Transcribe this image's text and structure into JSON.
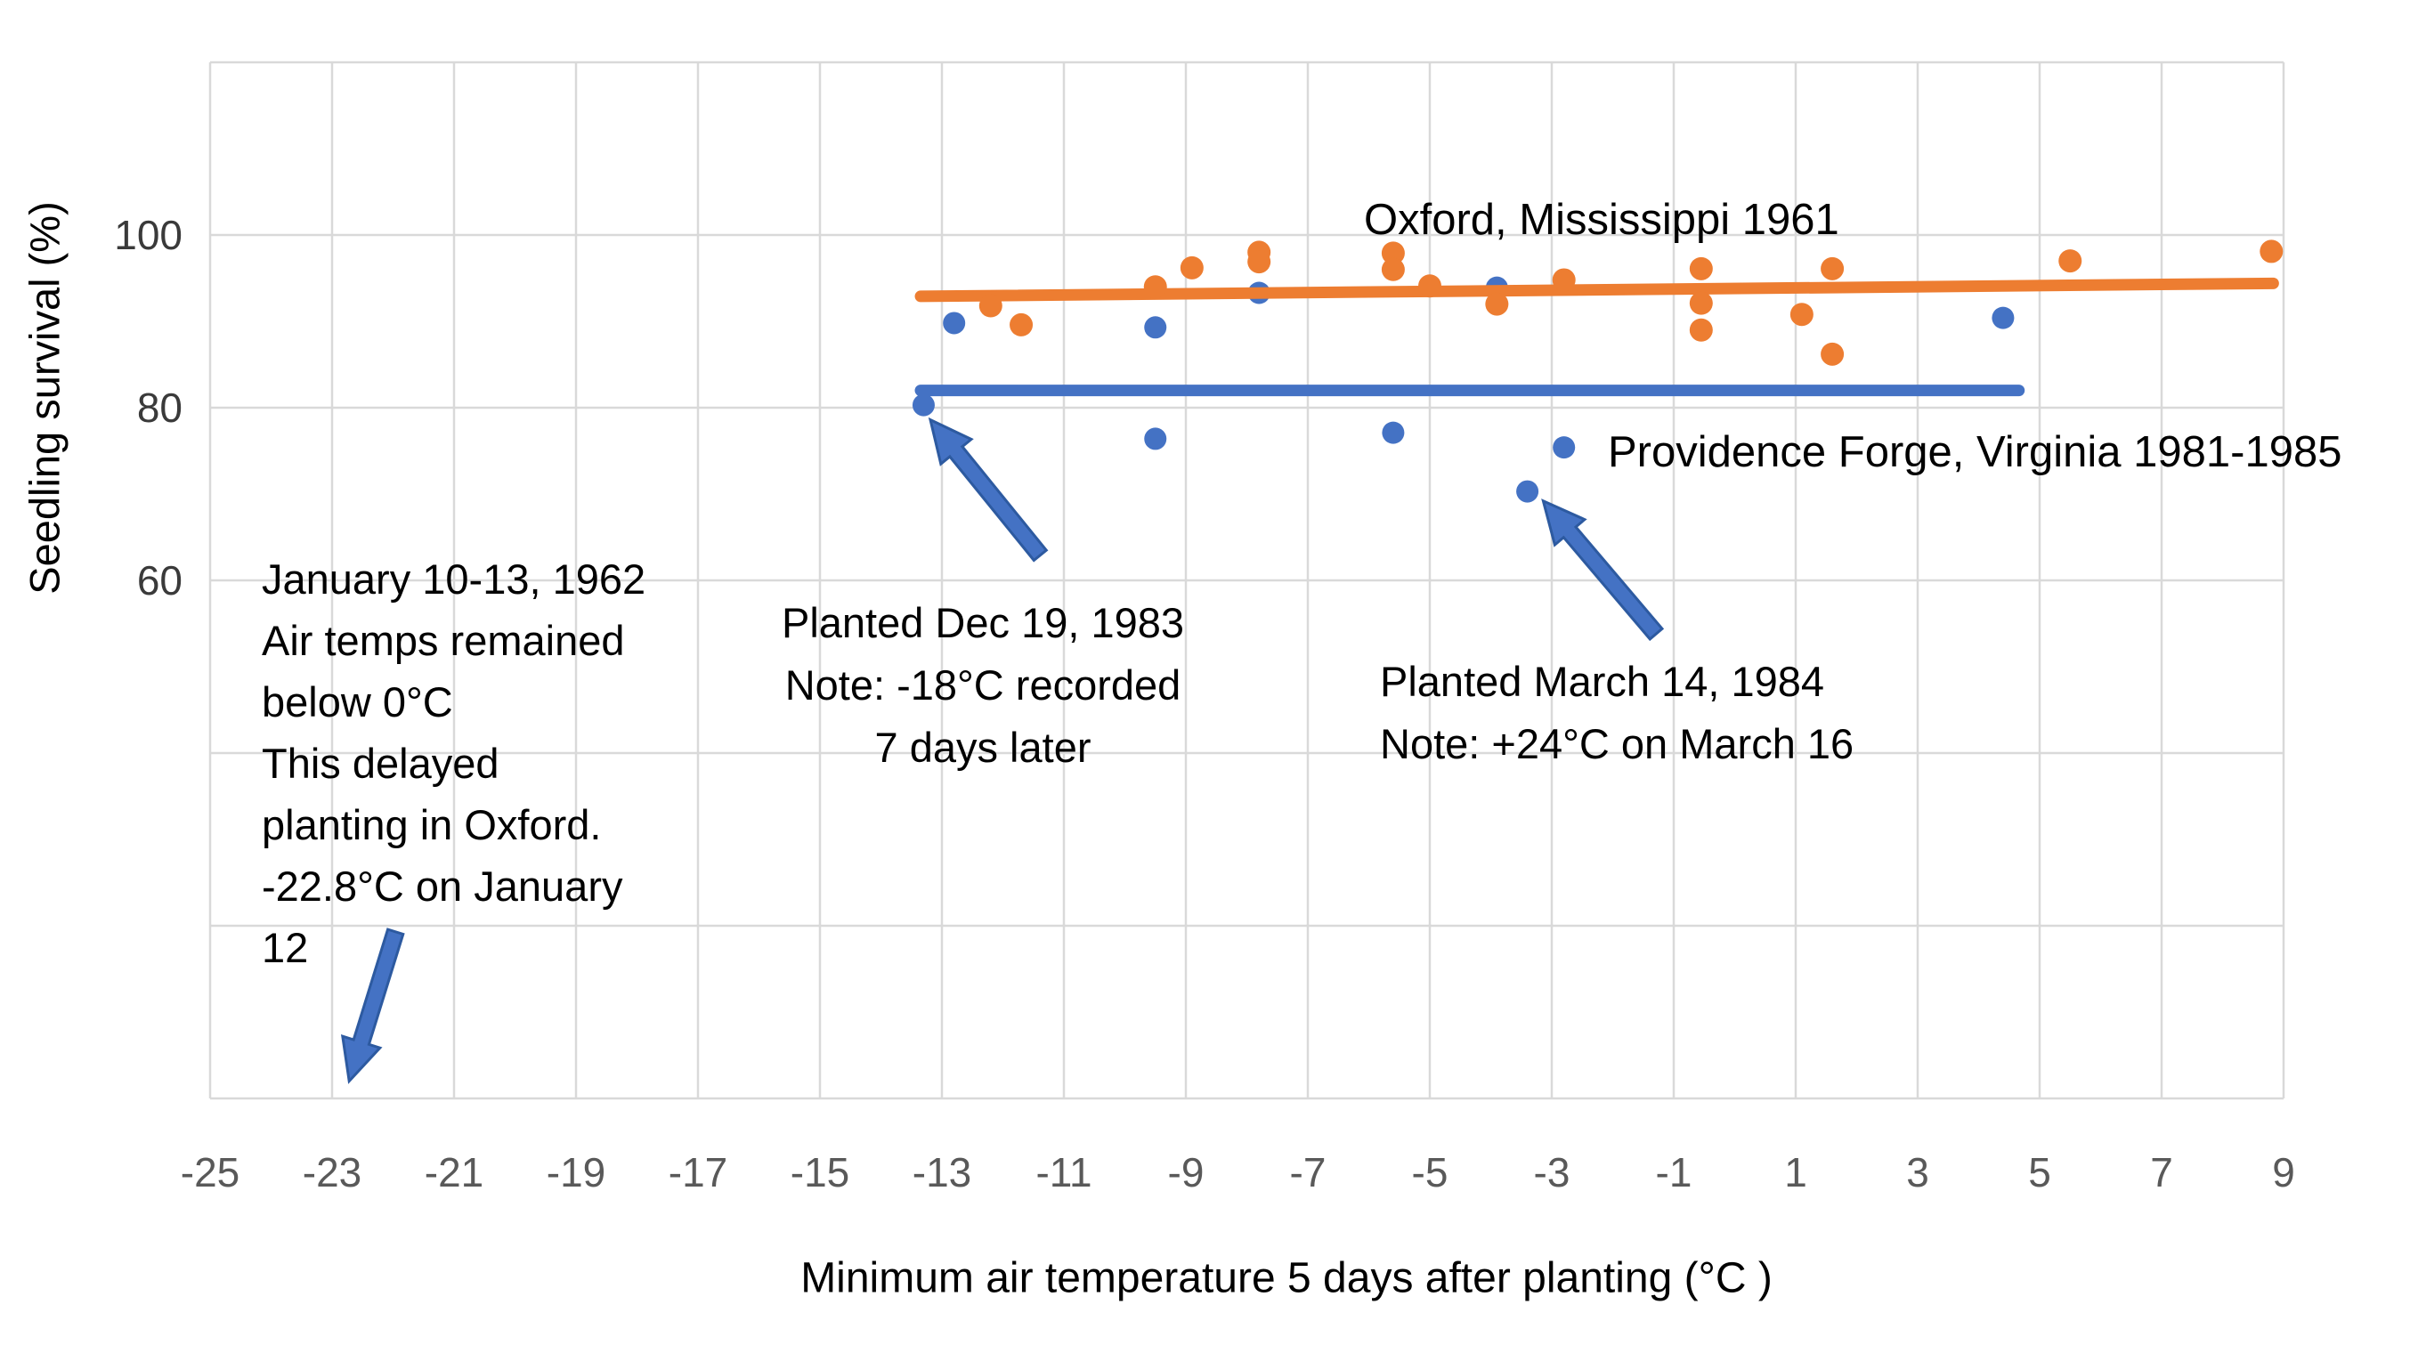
{
  "chart_data": {
    "type": "scatter",
    "title": "",
    "xlabel": "Minimum air temperature 5 days after planting  (°C )",
    "ylabel": "Seedling survival (%)",
    "xlim": [
      -25,
      9
    ],
    "ylim": [
      0,
      120
    ],
    "x_ticks": [
      -25,
      -23,
      -21,
      -19,
      -17,
      -15,
      -13,
      -11,
      -9,
      -7,
      -5,
      -3,
      -1,
      1,
      3,
      5,
      7,
      9
    ],
    "y_major_step": 20,
    "y_ticks_labeled": [
      100,
      80,
      60
    ],
    "grid": true,
    "legend_position": "inline-text-labels",
    "colors": {
      "oxford_orange": "#ED7D31",
      "providence_blue": "#4472C4",
      "arrow_fill": "#4472C4",
      "arrow_edge": "#2D5AA0",
      "gridline": "#D9D9D9",
      "x_tick_text": "#595959",
      "y_tick_text": "#3a3a3a",
      "annotation_text": "#000000"
    },
    "series": [
      {
        "name": "Oxford, Mississippi 1961",
        "color": "#ED7D31",
        "marker": "circle",
        "points": [
          [
            -12.2,
            91.8
          ],
          [
            -11.7,
            89.6
          ],
          [
            -9.5,
            94.0
          ],
          [
            -8.9,
            96.2
          ],
          [
            -7.8,
            98.0
          ],
          [
            -7.8,
            96.9
          ],
          [
            -5.6,
            97.9
          ],
          [
            -5.6,
            96.0
          ],
          [
            -5.0,
            94.1
          ],
          [
            -3.9,
            92.0
          ],
          [
            -2.8,
            94.8
          ],
          [
            -0.55,
            96.1
          ],
          [
            -0.55,
            92.1
          ],
          [
            -0.55,
            89.0
          ],
          [
            1.1,
            90.8
          ],
          [
            1.6,
            96.1
          ],
          [
            1.6,
            86.2
          ],
          [
            5.5,
            97.0
          ],
          [
            8.8,
            98.1
          ]
        ],
        "trend_line": {
          "from": [
            -13.35,
            92.9
          ],
          "to": [
            8.83,
            94.4
          ]
        }
      },
      {
        "name": "Providence Forge, Virginia 1981-1985",
        "color": "#4472C4",
        "marker": "circle",
        "points": [
          [
            -13.3,
            80.3
          ],
          [
            -12.8,
            89.8
          ],
          [
            -9.5,
            89.3
          ],
          [
            -9.5,
            76.4
          ],
          [
            -7.8,
            93.3
          ],
          [
            -5.6,
            77.1
          ],
          [
            -3.9,
            93.9
          ],
          [
            -3.4,
            70.3
          ],
          [
            -2.8,
            75.4
          ],
          [
            4.4,
            90.4
          ]
        ],
        "trend_line": {
          "from": [
            -13.35,
            82.0
          ],
          "to": [
            4.66,
            82.0
          ]
        }
      }
    ],
    "annotations": [
      {
        "id": "january-freeze",
        "text": "January 10-13, 1962\nAir temps remained\nbelow 0°C\nThis delayed\nplanting in Oxford.\n-22.8°C on January\n12",
        "align": "left",
        "arrow": {
          "tail": [
            -21.96,
            19.3
          ],
          "tip": [
            -22.72,
            2.0
          ]
        }
      },
      {
        "id": "planted-dec-19-1983",
        "text": "Planted Dec 19, 1983\nNote: -18°C recorded\n7 days later",
        "align": "center",
        "arrow": {
          "tail": [
            -11.39,
            62.9
          ],
          "tip": [
            -13.19,
            78.6
          ]
        }
      },
      {
        "id": "planted-march-14-1984",
        "text": "Planted March 14, 1984\nNote: +24°C on March 16",
        "align": "left",
        "arrow": {
          "tail": [
            -1.29,
            53.8
          ],
          "tip": [
            -3.14,
            69.2
          ]
        }
      }
    ]
  }
}
